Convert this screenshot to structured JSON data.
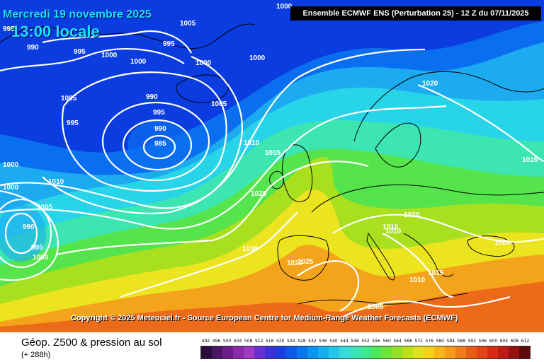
{
  "header": {
    "date": "Mercredi 19 novembre 2025",
    "time": "13:00 locale",
    "model_run": "Ensemble ECMWF ENS  (Perturbation 25)  -  12 Z du 07/11/2025"
  },
  "copyright": "Copyright © 2025 Meteociel.fr - Source European Centre for Medium-Range Weather Forecasts (ECMWF)",
  "footer": {
    "title": "Géop. Z500 & pression au sol",
    "lead_time": "(+ 288h)"
  },
  "scale": {
    "unit_label_values": [
      "492",
      "496",
      "500",
      "504",
      "508",
      "512",
      "516",
      "520",
      "524",
      "528",
      "532",
      "536",
      "540",
      "544",
      "548",
      "552",
      "556",
      "560",
      "564",
      "568",
      "572",
      "576",
      "580",
      "584",
      "588",
      "592",
      "596",
      "600",
      "604",
      "608",
      "612"
    ],
    "colors": [
      "#2d0b3d",
      "#4a1563",
      "#6a1d86",
      "#8a2aa8",
      "#a03ac0",
      "#6a2fd0",
      "#3b2fd8",
      "#1d3ee0",
      "#1059e8",
      "#0a76ee",
      "#0a95f0",
      "#14b0ee",
      "#25c7e8",
      "#37dbd8",
      "#3de3b8",
      "#3de890",
      "#4be85e",
      "#6ee43c",
      "#95e02a",
      "#bde01c",
      "#e0e020",
      "#f4d21c",
      "#f7b61c",
      "#f49a1a",
      "#ee7c18",
      "#e85e18",
      "#e04418",
      "#d62c16",
      "#bc1c14",
      "#951210",
      "#5e0a0a"
    ]
  },
  "map": {
    "colors": {
      "deep_blue": "#0a3ce0",
      "blue": "#0a6ef0",
      "sky": "#1caaf0",
      "cyan": "#28d4e8",
      "aqua": "#3de6b0",
      "green": "#55e44c",
      "yellow_green": "#a8e020",
      "yellow": "#ece41e",
      "orange": "#f4a41a",
      "red_orange": "#ec6a18",
      "isobar": "#ffffff",
      "coast": "#000000"
    },
    "pressure_labels": [
      "1000",
      "1005",
      "995",
      "990",
      "995",
      "1000",
      "1000",
      "995",
      "1005",
      "1000",
      "1000",
      "990",
      "995",
      "995",
      "990",
      "1005",
      "985",
      "1010",
      "1015",
      "1020",
      "1030",
      "1010",
      "1005",
      "990",
      "995",
      "1000",
      "1020",
      "1025",
      "1020",
      "1020",
      "1010",
      "1010",
      "1015",
      "1010",
      "1005",
      "1020",
      "1015",
      "1000",
      "1000",
      "1020",
      "1005"
    ]
  }
}
